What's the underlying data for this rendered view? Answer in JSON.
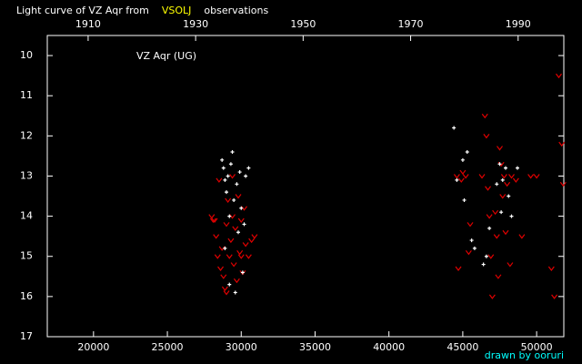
{
  "chart_data": {
    "type": "scatter",
    "title_parts": [
      "Light curve of VZ Aqr from",
      "VSOLJ",
      "observations"
    ],
    "title_colors": [
      "#ffffff",
      "#ffff00",
      "#ffffff"
    ],
    "annotation": "VZ Aqr (UG)",
    "credit": "drawn by ooruri",
    "credit_color": "#00ffff",
    "xlim": [
      16870,
      51840
    ],
    "xticks": [
      20000,
      25000,
      30000,
      35000,
      40000,
      45000,
      50000
    ],
    "x2lim": [
      1902.4,
      1998.5
    ],
    "x2ticks": [
      1910,
      1930,
      1950,
      1970,
      1990
    ],
    "ylim": [
      17,
      9.5
    ],
    "yticks": [
      10,
      11,
      12,
      13,
      14,
      15,
      16,
      17
    ],
    "series": [
      {
        "color": "#e00000",
        "marker": "v",
        "x": [
          28000,
          28200,
          28300,
          28400,
          28500,
          28600,
          28700,
          28800,
          28900,
          29000,
          29100,
          29200,
          29300,
          29400,
          29500,
          29600,
          29700,
          29800,
          29900,
          30000,
          30100,
          30200,
          30300,
          30500,
          30700,
          30900,
          28100,
          29000,
          29400,
          30000,
          44600,
          44900,
          45000,
          45200,
          45500,
          45400,
          46300,
          46500,
          46600,
          46700,
          46800,
          46900,
          47000,
          47200,
          47300,
          47500,
          47600,
          47700,
          47800,
          47900,
          48000,
          48200,
          48300,
          48600,
          49000,
          49600,
          50000,
          51000,
          51200,
          51500,
          51700,
          51800,
          44700,
          47400
        ],
        "values": [
          14.0,
          14.1,
          14.5,
          15.0,
          13.1,
          15.3,
          14.8,
          15.5,
          15.8,
          14.2,
          13.6,
          15.0,
          14.6,
          13.0,
          15.2,
          14.3,
          15.6,
          13.5,
          14.9,
          14.1,
          15.4,
          13.8,
          14.7,
          15.0,
          14.6,
          14.5,
          14.1,
          15.9,
          14.0,
          15.0,
          13.0,
          13.1,
          12.9,
          13.0,
          14.2,
          14.9,
          13.0,
          11.5,
          12.0,
          13.3,
          14.0,
          15.0,
          16.0,
          13.9,
          14.5,
          12.3,
          12.7,
          13.5,
          13.0,
          14.4,
          13.2,
          15.2,
          13.0,
          13.1,
          14.5,
          13.0,
          13.0,
          15.3,
          16.0,
          10.5,
          12.2,
          13.2,
          15.3,
          15.5
        ]
      },
      {
        "color": "#ffffff",
        "marker": "+",
        "x": [
          28700,
          28800,
          28900,
          29000,
          29100,
          29200,
          29300,
          29400,
          29500,
          29700,
          29800,
          29900,
          30000,
          30100,
          30300,
          30500,
          29200,
          29600,
          28900,
          30200,
          44400,
          44600,
          45000,
          45300,
          45100,
          45600,
          45800,
          46600,
          46800,
          47300,
          47500,
          47700,
          47900,
          48100,
          48300,
          47600,
          48700,
          46400
        ],
        "values": [
          12.6,
          12.8,
          13.1,
          13.4,
          13.0,
          14.0,
          12.7,
          12.4,
          13.6,
          13.2,
          14.4,
          12.9,
          13.8,
          15.4,
          13.0,
          12.8,
          15.7,
          15.9,
          14.8,
          14.2,
          11.8,
          13.1,
          12.6,
          12.4,
          13.6,
          14.6,
          14.8,
          15.0,
          14.3,
          13.2,
          12.7,
          13.1,
          12.8,
          13.5,
          14.0,
          13.9,
          12.8,
          15.2
        ]
      }
    ]
  }
}
